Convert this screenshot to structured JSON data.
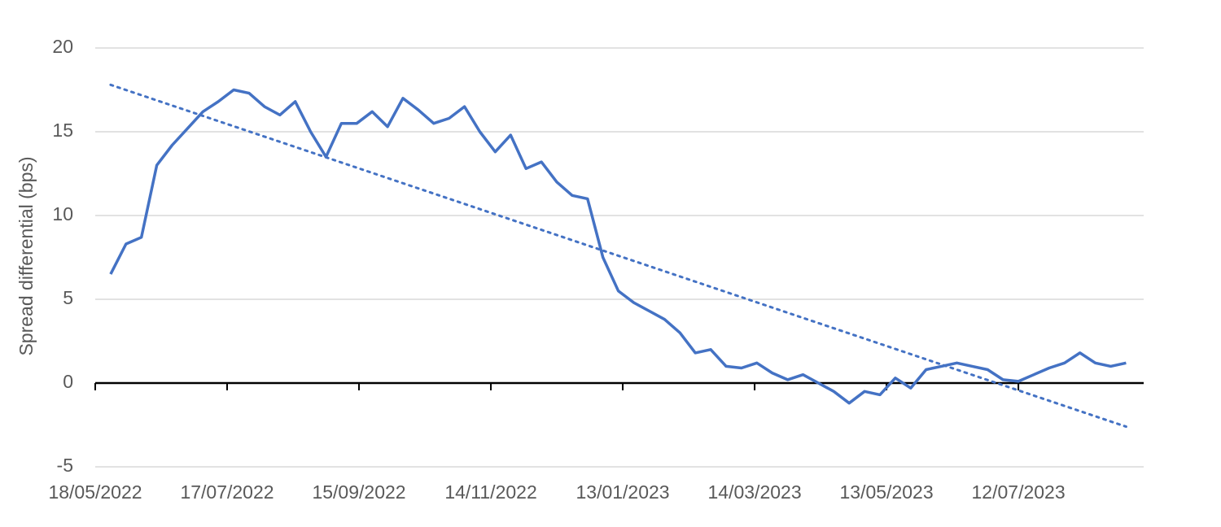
{
  "chart_data": {
    "type": "line",
    "y_label": "Spread differential (bps)",
    "x": [
      "25/05/2022",
      "01/06/2022",
      "08/06/2022",
      "15/06/2022",
      "22/06/2022",
      "29/06/2022",
      "06/07/2022",
      "13/07/2022",
      "20/07/2022",
      "27/07/2022",
      "03/08/2022",
      "10/08/2022",
      "17/08/2022",
      "24/08/2022",
      "31/08/2022",
      "07/09/2022",
      "14/09/2022",
      "21/09/2022",
      "28/09/2022",
      "05/10/2022",
      "12/10/2022",
      "19/10/2022",
      "26/10/2022",
      "02/11/2022",
      "09/11/2022",
      "16/11/2022",
      "23/11/2022",
      "30/11/2022",
      "07/12/2022",
      "14/12/2022",
      "21/12/2022",
      "28/12/2022",
      "04/01/2023",
      "11/01/2023",
      "18/01/2023",
      "25/01/2023",
      "01/02/2023",
      "08/02/2023",
      "15/02/2023",
      "22/02/2023",
      "01/03/2023",
      "08/03/2023",
      "15/03/2023",
      "22/03/2023",
      "29/03/2023",
      "05/04/2023",
      "12/04/2023",
      "19/04/2023",
      "26/04/2023",
      "03/05/2023",
      "10/05/2023",
      "17/05/2023",
      "24/05/2023",
      "31/05/2023",
      "07/06/2023",
      "14/06/2023",
      "21/06/2023",
      "28/06/2023",
      "05/07/2023",
      "12/07/2023",
      "19/07/2023",
      "26/07/2023",
      "02/08/2023",
      "09/08/2023",
      "16/08/2023",
      "23/08/2023",
      "30/08/2023"
    ],
    "series": [
      {
        "color": "#4472c4",
        "values": [
          6.5,
          8.3,
          8.7,
          13.0,
          14.2,
          15.2,
          16.2,
          16.8,
          17.5,
          17.3,
          16.5,
          16.0,
          16.8,
          15.0,
          13.5,
          15.5,
          15.5,
          16.2,
          15.3,
          17.0,
          16.3,
          15.5,
          15.8,
          16.5,
          15.0,
          13.8,
          14.8,
          12.8,
          13.2,
          12.0,
          11.2,
          11.0,
          7.5,
          5.5,
          4.8,
          4.3,
          3.8,
          3.0,
          1.8,
          2.0,
          1.0,
          0.9,
          1.2,
          0.6,
          0.2,
          0.5,
          0.0,
          -0.5,
          -1.2,
          -0.5,
          -0.7,
          0.3,
          -0.3,
          0.8,
          1.0,
          1.2,
          1.0,
          0.8,
          0.2,
          0.1,
          0.5,
          0.9,
          1.2,
          1.8,
          1.2,
          1.0,
          1.2
        ]
      }
    ],
    "trendline": {
      "x": [
        "25/05/2022",
        "30/08/2023"
      ],
      "values": [
        17.8,
        -2.6
      ],
      "color": "#4472c4",
      "style": "dotted"
    },
    "xlim": [
      "18/05/2022",
      "07/09/2023"
    ],
    "xticks": [
      "18/05/2022",
      "17/07/2022",
      "15/09/2022",
      "14/11/2022",
      "13/01/2023",
      "14/03/2023",
      "13/05/2023",
      "12/07/2023"
    ],
    "ylim": [
      -5,
      20
    ],
    "yticks": [
      -5,
      0,
      5,
      10,
      15,
      20
    ],
    "grid": true
  }
}
